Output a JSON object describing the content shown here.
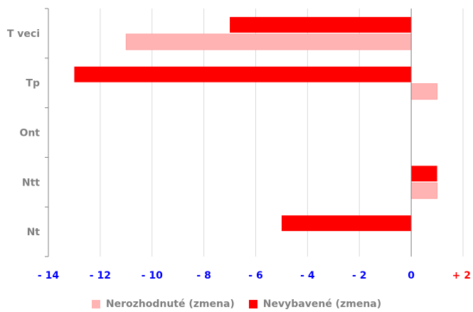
{
  "chart_data": {
    "type": "bar",
    "orientation": "horizontal",
    "categories": [
      "T veci",
      "Tp",
      "Ont",
      "Ntt",
      "Nt"
    ],
    "series": [
      {
        "name": "Nevybavené (zmena)",
        "color": "#ff0000",
        "values": [
          -7,
          -13,
          0,
          1,
          -5
        ]
      },
      {
        "name": "Nerozhodnuté (zmena)",
        "color": "#ffb3b3",
        "values": [
          -11,
          1,
          0,
          1,
          0
        ]
      }
    ],
    "xlim": [
      -14,
      2
    ],
    "xticks": [
      {
        "value": -14,
        "label": "- 14"
      },
      {
        "value": -12,
        "label": "- 12"
      },
      {
        "value": -10,
        "label": "- 10"
      },
      {
        "value": -8,
        "label": "- 8"
      },
      {
        "value": -6,
        "label": "- 6"
      },
      {
        "value": -4,
        "label": "- 4"
      },
      {
        "value": -2,
        "label": "- 2"
      },
      {
        "value": 0,
        "label": "0"
      },
      {
        "value": 2,
        "label": "+ 2"
      }
    ],
    "grid": true,
    "legend_position": "bottom",
    "legend_order": [
      "Nerozhodnuté (zmena)",
      "Nevybavené (zmena)"
    ]
  }
}
